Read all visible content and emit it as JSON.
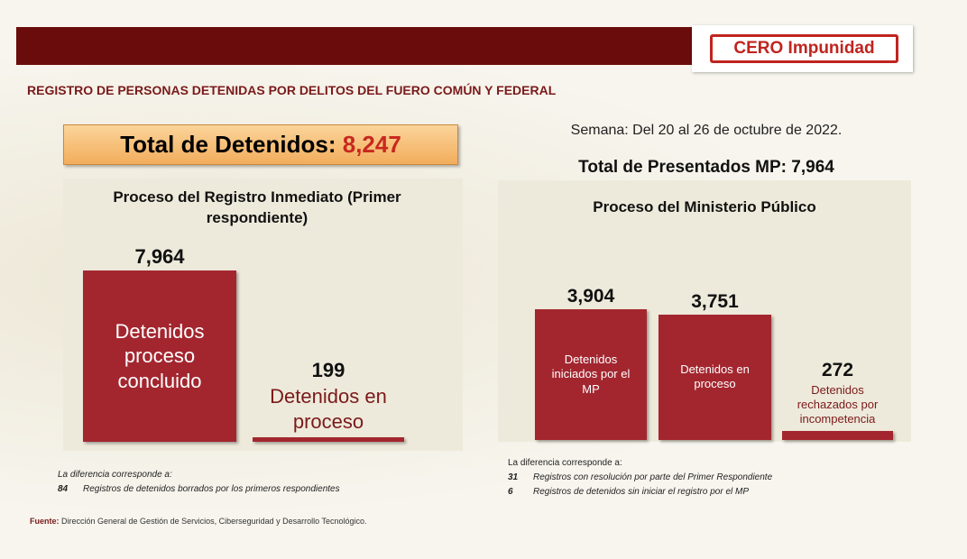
{
  "header": {
    "title": "REGISTRO DE PERSONAS DETENIDAS POR DELITOS DEL FUERO COMÚN Y FEDERAL",
    "logo": "CERO Impunidad"
  },
  "total": {
    "label": "Total de Detenidos:",
    "value": "8,247"
  },
  "week": "Semana: Del 20 al 26 de octubre de 2022.",
  "total_mp": "Total de Presentados MP: 7,964",
  "chart_data": [
    {
      "type": "bar",
      "title": "Proceso del Registro Inmediato (Primer respondiente)",
      "categories": [
        "Detenidos proceso concluido",
        "Detenidos en proceso"
      ],
      "values": [
        7964,
        199
      ],
      "value_labels": [
        "7,964",
        "199"
      ],
      "color": "#a3262f"
    },
    {
      "type": "bar",
      "title": "Proceso del Ministerio Público",
      "categories": [
        "Detenidos iniciados por el MP",
        "Detenidos en proceso",
        "Detenidos rechazados por incompetencia"
      ],
      "values": [
        3904,
        3751,
        272
      ],
      "value_labels": [
        "3,904",
        "3,751",
        "272"
      ],
      "color": "#a3262f"
    }
  ],
  "notes": [
    {
      "title": "La diferencia corresponde a:",
      "items": [
        {
          "count": 84,
          "text": "Registros de detenidos borrados por los primeros respondientes"
        }
      ]
    },
    {
      "title": "La diferencia corresponde a:",
      "items": [
        {
          "count": 31,
          "text": "Registros con resolución por parte del Primer Respondiente"
        },
        {
          "count": 6,
          "text": "Registros de detenidos sin iniciar el registro por el MP"
        }
      ]
    }
  ],
  "source": {
    "label": "Fuente:",
    "text": "Dirección General de Gestión de Servicios, Ciberseguridad y Desarrollo Tecnológico."
  }
}
